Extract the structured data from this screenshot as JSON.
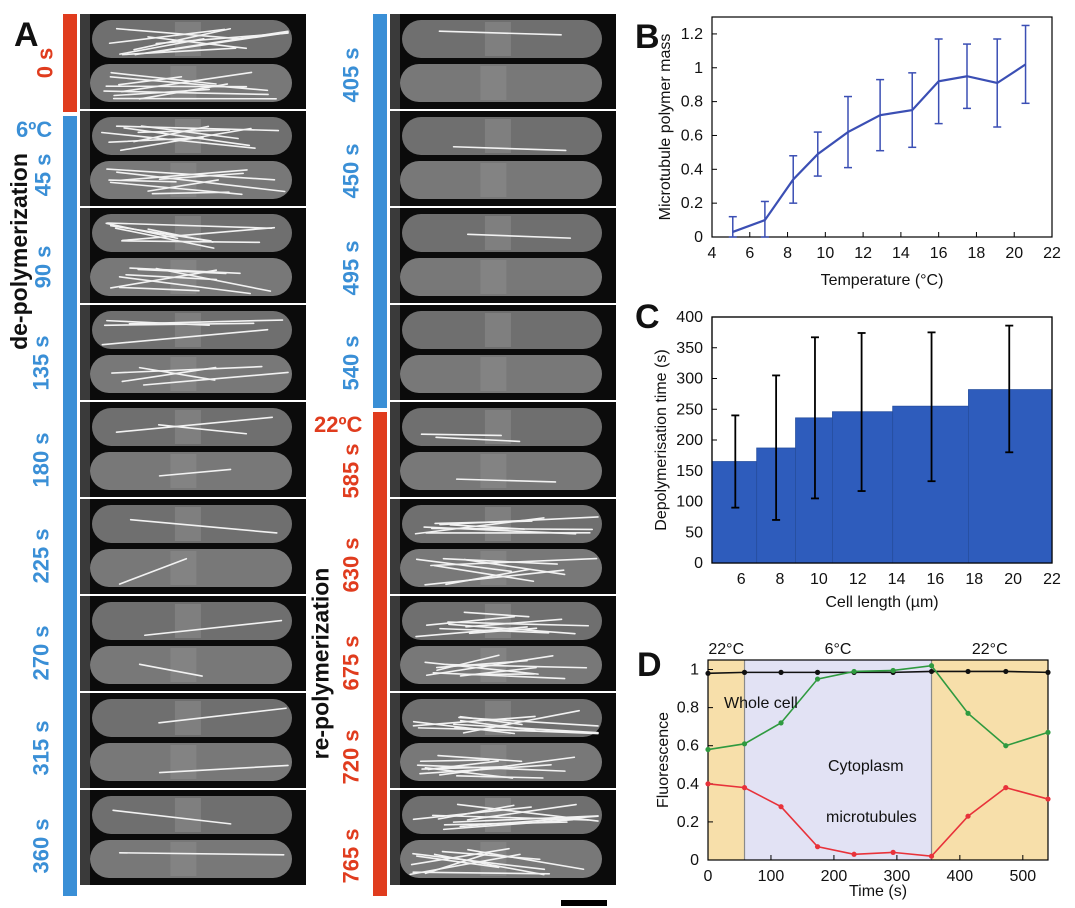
{
  "panel_labels": {
    "a": "A",
    "b": "B",
    "c": "C",
    "d": "D"
  },
  "panel_a": {
    "left_column_times": [
      "0 s",
      "45 s",
      "90 s",
      "135 s",
      "180 s",
      "225 s",
      "270 s",
      "315 s",
      "360 s"
    ],
    "right_column_times": [
      "405 s",
      "450 s",
      "495 s",
      "540 s",
      "585 s",
      "630 s",
      "675 s",
      "720 s",
      "765 s"
    ],
    "cold_temp_label": "6ºC",
    "warm_temp_label": "22ºC",
    "phase_depolymerization": "de-polymerization",
    "phase_repolymerization": "re-polymerization",
    "colors": {
      "warm": "#e03c1e",
      "cold": "#3a8fd6"
    }
  },
  "chart_data": [
    {
      "panel": "B",
      "type": "line",
      "xlabel": "Temperature (°C)",
      "ylabel": "Microtubule polymer mass",
      "xlim": [
        4,
        22
      ],
      "ylim": [
        0,
        1.3
      ],
      "xticks": [
        "4",
        "6",
        "8",
        "10",
        "12",
        "14",
        "16",
        "18",
        "20",
        "22"
      ],
      "yticks": [
        "0",
        "0.2",
        "0.4",
        "0.6",
        "0.8",
        "1",
        "1.2"
      ],
      "series": [
        {
          "color": "#3b4fb4",
          "x": [
            5.1,
            6.8,
            8.3,
            9.6,
            11.2,
            12.9,
            14.6,
            16.0,
            17.5,
            19.1,
            20.6
          ],
          "y": [
            0.03,
            0.1,
            0.34,
            0.49,
            0.62,
            0.72,
            0.75,
            0.92,
            0.95,
            0.91,
            1.02
          ],
          "err": [
            0.09,
            0.11,
            0.14,
            0.13,
            0.21,
            0.21,
            0.22,
            0.25,
            0.19,
            0.26,
            0.23
          ]
        }
      ]
    },
    {
      "panel": "C",
      "type": "bar",
      "xlabel": "Cell length (µm)",
      "ylabel": "Depolymerisation time (s)",
      "xlim": [
        4.5,
        22
      ],
      "ylim": [
        0,
        400
      ],
      "xticks": [
        "6",
        "8",
        "10",
        "12",
        "14",
        "16",
        "18",
        "20",
        "22"
      ],
      "yticks": [
        "0",
        "50",
        "100",
        "150",
        "200",
        "250",
        "300",
        "350",
        "400"
      ],
      "bar_color": "#2e5cbc",
      "bins": [
        [
          4.5,
          6.8
        ],
        [
          6.8,
          8.8
        ],
        [
          8.8,
          10.7
        ],
        [
          10.7,
          13.8
        ],
        [
          13.8,
          17.7
        ],
        [
          17.7,
          22
        ]
      ],
      "bar_centers": [
        5.7,
        7.8,
        9.8,
        12.2,
        15.8,
        19.8
      ],
      "values": [
        165,
        187,
        236,
        246,
        255,
        282
      ],
      "err_low": [
        90,
        70,
        105,
        117,
        133,
        180
      ],
      "err_high": [
        240,
        305,
        367,
        374,
        375,
        386
      ]
    },
    {
      "panel": "D",
      "type": "line",
      "xlabel": "Time (s)",
      "ylabel": "Fluorescence",
      "xlim": [
        0,
        540
      ],
      "ylim": [
        0,
        1.05
      ],
      "xticks": [
        "0",
        "100",
        "200",
        "300",
        "400",
        "500"
      ],
      "yticks": [
        "0",
        "0.2",
        "0.4",
        "0.6",
        "0.8",
        "1"
      ],
      "regions": [
        {
          "label": "22°C",
          "from": 0,
          "to": 58,
          "color": "#f7dfaa"
        },
        {
          "label": "6°C",
          "from": 58,
          "to": 355,
          "color": "#e2e2f4"
        },
        {
          "label": "22°C",
          "from": 355,
          "to": 540,
          "color": "#f7dfaa"
        }
      ],
      "series": [
        {
          "name": "Whole cell",
          "color": "#111111",
          "x": [
            0,
            58,
            116,
            174,
            232,
            294,
            355,
            413,
            473,
            540
          ],
          "y": [
            0.98,
            0.985,
            0.985,
            0.985,
            0.985,
            0.985,
            0.99,
            0.99,
            0.99,
            0.985
          ]
        },
        {
          "name": "Cytoplasm",
          "color": "#2f9a3f",
          "x": [
            0,
            58,
            116,
            174,
            232,
            294,
            355,
            413,
            473,
            540
          ],
          "y": [
            0.58,
            0.61,
            0.72,
            0.95,
            0.99,
            0.995,
            1.02,
            0.77,
            0.6,
            0.67
          ]
        },
        {
          "name": "microtubules",
          "color": "#e8323a",
          "x": [
            0,
            58,
            116,
            174,
            232,
            294,
            355,
            413,
            473,
            540
          ],
          "y": [
            0.4,
            0.38,
            0.28,
            0.07,
            0.03,
            0.04,
            0.02,
            0.23,
            0.38,
            0.32
          ]
        }
      ]
    }
  ]
}
